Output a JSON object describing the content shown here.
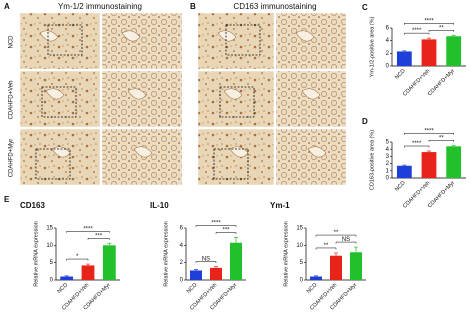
{
  "panels": [
    {
      "letter": "A",
      "title": "Ym-1/2 immunostaining"
    },
    {
      "letter": "B",
      "title": "CD163 immunostaining"
    }
  ],
  "rows": [
    "NCD",
    "CDAHFD+Veh",
    "CDAHFD+Myr"
  ],
  "panel_e": "E",
  "chart_data": [
    {
      "type": "bar",
      "letter": "C",
      "ylabel": "Ym-1/2-positive area (%)",
      "categories": [
        "NCD",
        "CDAHFD+Veh",
        "CDAHFD+Myr"
      ],
      "values": [
        2.3,
        4.2,
        4.7
      ],
      "errors": [
        0.1,
        0.2,
        0.15
      ],
      "colors": [
        "#1f3fd9",
        "#e8231a",
        "#22c02a"
      ],
      "ylim": [
        0,
        6
      ],
      "yticks": [
        0,
        2,
        4,
        6
      ],
      "significance": [
        "****",
        "****",
        "**"
      ]
    },
    {
      "type": "bar",
      "letter": "D",
      "ylabel": "CD163-positive area (%)",
      "categories": [
        "NCD",
        "CDAHFD+Veh",
        "CDAHFD+Myr"
      ],
      "values": [
        1.7,
        3.6,
        4.4
      ],
      "errors": [
        0.1,
        0.15,
        0.15
      ],
      "colors": [
        "#1f3fd9",
        "#e8231a",
        "#22c02a"
      ],
      "ylim": [
        0,
        5
      ],
      "yticks": [
        0,
        1,
        2,
        3,
        4,
        5
      ],
      "significance": [
        "****",
        "****",
        "**"
      ]
    },
    {
      "type": "bar",
      "title": "CD163",
      "ylabel": "Relative mRNA expression",
      "categories": [
        "NCD",
        "CDAHFD+Veh",
        "CDAHFD+Myr"
      ],
      "values": [
        1,
        4.2,
        10
      ],
      "errors": [
        0.2,
        0.4,
        0.6
      ],
      "colors": [
        "#1f3fd9",
        "#e8231a",
        "#22c02a"
      ],
      "ylim": [
        0,
        15
      ],
      "yticks": [
        0,
        5,
        10,
        15
      ],
      "significance": [
        "****",
        "*",
        "***"
      ]
    },
    {
      "type": "bar",
      "title": "IL-10",
      "ylabel": "Relative mRNA expression",
      "categories": [
        "NCD",
        "CDAHFD+Veh",
        "CDAHFD+Myr"
      ],
      "values": [
        1.1,
        1.4,
        4.3
      ],
      "errors": [
        0.1,
        0.15,
        0.6
      ],
      "colors": [
        "#1f3fd9",
        "#e8231a",
        "#22c02a"
      ],
      "ylim": [
        0,
        6
      ],
      "yticks": [
        0,
        2,
        4,
        6
      ],
      "significance": [
        "****",
        "NS",
        "***"
      ]
    },
    {
      "type": "bar",
      "title": "Ym-1",
      "ylabel": "Relative mRNA expression",
      "categories": [
        "NCD",
        "CDAHFD+Veh",
        "CDAHFD+Myr"
      ],
      "values": [
        1,
        7,
        8
      ],
      "errors": [
        0.2,
        0.8,
        1.5
      ],
      "colors": [
        "#1f3fd9",
        "#e8231a",
        "#22c02a"
      ],
      "ylim": [
        0,
        15
      ],
      "yticks": [
        0,
        5,
        10,
        15
      ],
      "significance": [
        "**",
        "**",
        "NS"
      ]
    }
  ]
}
